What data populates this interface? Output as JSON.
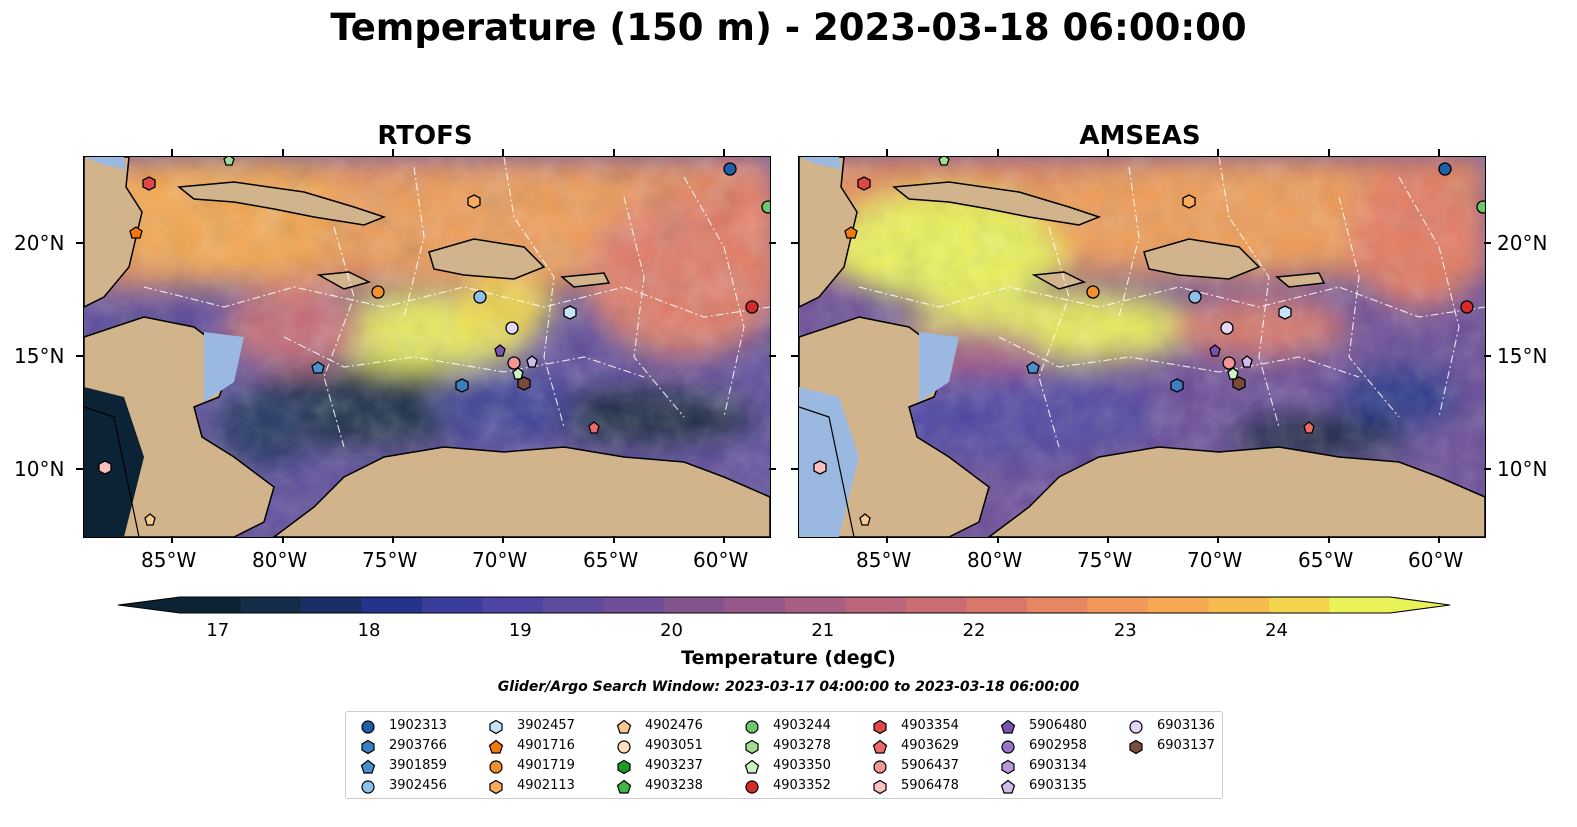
{
  "title": "Temperature (150 m) - 2023-03-18 06:00:00",
  "panels": [
    {
      "name": "RTOFS"
    },
    {
      "name": "AMSEAS"
    }
  ],
  "lat_labels": [
    "20°N",
    "15°N",
    "10°N"
  ],
  "lon_labels": [
    "85°W",
    "80°W",
    "75°W",
    "70°W",
    "65°W",
    "60°W"
  ],
  "colorbar": {
    "title": "Temperature (degC)",
    "ticks": [
      "17",
      "18",
      "19",
      "20",
      "21",
      "22",
      "23",
      "24"
    ],
    "range": [
      16.75,
      24.75
    ],
    "colors": [
      "#0b2335",
      "#132c48",
      "#1b2f66",
      "#25348a",
      "#3a3d9c",
      "#4e45a2",
      "#5f4c9e",
      "#714f97",
      "#84548f",
      "#975989",
      "#a95f82",
      "#bb657b",
      "#ca6c72",
      "#d8776a",
      "#e68662",
      "#f1985a",
      "#f6a953",
      "#f6bb4e",
      "#f2d54c",
      "#eaf259"
    ]
  },
  "search_window": "Glider/Argo Search Window: 2023-03-17 04:00:00 to 2023-03-18 06:00:00",
  "legend": [
    {
      "id": "1902313",
      "shape": "circle",
      "color": "#1f5fa8"
    },
    {
      "id": "2903766",
      "shape": "hexagon",
      "color": "#3b7fc0"
    },
    {
      "id": "3901859",
      "shape": "pentagon",
      "color": "#4a90d0"
    },
    {
      "id": "3902456",
      "shape": "circle",
      "color": "#8ec0ea"
    },
    {
      "id": "3902457",
      "shape": "hexagon",
      "color": "#c6e3f7"
    },
    {
      "id": "4901716",
      "shape": "pentagon",
      "color": "#f07a10"
    },
    {
      "id": "4901719",
      "shape": "circle",
      "color": "#f3902e"
    },
    {
      "id": "4902113",
      "shape": "hexagon",
      "color": "#f8ac5c"
    },
    {
      "id": "4902476",
      "shape": "pentagon",
      "color": "#fbc890"
    },
    {
      "id": "4903051",
      "shape": "circle",
      "color": "#fde0c0"
    },
    {
      "id": "4903237",
      "shape": "hexagon",
      "color": "#1f9a2a"
    },
    {
      "id": "4903238",
      "shape": "pentagon",
      "color": "#40b648"
    },
    {
      "id": "4903244",
      "shape": "circle",
      "color": "#6cc868"
    },
    {
      "id": "4903278",
      "shape": "hexagon",
      "color": "#9ede90"
    },
    {
      "id": "4903350",
      "shape": "pentagon",
      "color": "#cdf2c4"
    },
    {
      "id": "4903352",
      "shape": "circle",
      "color": "#d42a2a"
    },
    {
      "id": "4903354",
      "shape": "hexagon",
      "color": "#e04848"
    },
    {
      "id": "4903629",
      "shape": "pentagon",
      "color": "#ec6a6a"
    },
    {
      "id": "5906437",
      "shape": "circle",
      "color": "#f49696"
    },
    {
      "id": "5906478",
      "shape": "hexagon",
      "color": "#fac0c0"
    },
    {
      "id": "5906480",
      "shape": "pentagon",
      "color": "#7a52b0"
    },
    {
      "id": "6902958",
      "shape": "circle",
      "color": "#9a74c8"
    },
    {
      "id": "6903134",
      "shape": "hexagon",
      "color": "#b89ada"
    },
    {
      "id": "6903135",
      "shape": "pentagon",
      "color": "#d2bcea"
    },
    {
      "id": "6903136",
      "shape": "circle",
      "color": "#e6d6f6"
    },
    {
      "id": "6903137",
      "shape": "hexagon",
      "color": "#7a4a3a"
    }
  ],
  "colors": {
    "land": "#d2b48c",
    "shallow_water": "#9bb8e0"
  }
}
